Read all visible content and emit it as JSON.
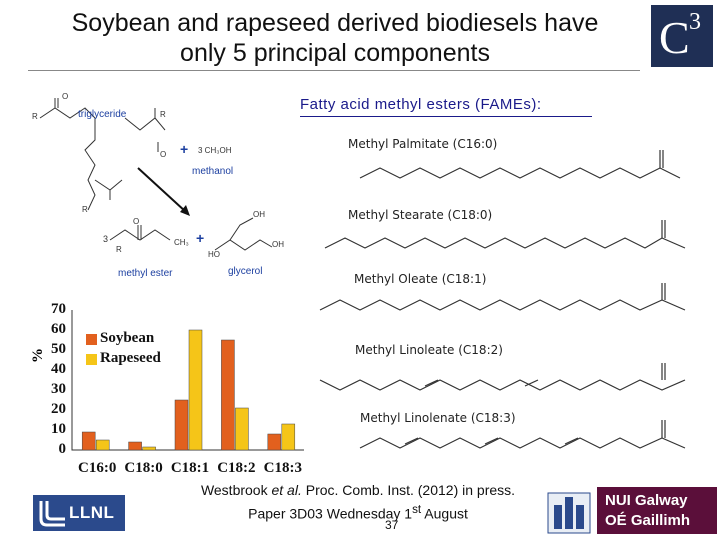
{
  "slide": {
    "title_line1": "Soybean and rapeseed derived biodiesels have",
    "title_line2": "only 5 principal components",
    "logo_letter": "C",
    "logo_sup": "3",
    "fame_title": "Fatty acid methyl esters (FAMEs):",
    "esters": [
      "Methyl Palmitate (C16:0)",
      "Methyl Stearate (C18:0)",
      "Methyl Oleate (C18:1)",
      "Methyl Linoleate (C18:2)",
      "Methyl Linolenate (C18:3)"
    ],
    "reaction": {
      "triglyceride": "triglyceride",
      "methanol": "methanol",
      "methanol_formula": "3 CH₃OH",
      "methyl_ester": "methyl ester",
      "glycerol": "glycerol",
      "coef": "3",
      "ch3": "CH₃",
      "ho": "HO",
      "oh": "OH",
      "r": "R",
      "o": "O"
    },
    "citation_pre": "Westbrook ",
    "citation_em": "et al.",
    "citation_post": " Proc. Comb. Inst. (2012) in press.",
    "paper_line_pre": "Paper 3D03 Wednesday 1",
    "paper_line_sup": "st",
    "paper_line_post": " August",
    "page_number": "37",
    "llnl_label": "LLNL",
    "nui_line1": "NUI Galway",
    "nui_line2": "OÉ Gaillimh"
  },
  "colors": {
    "soybean": "#e2601e",
    "rapeseed": "#f5c518",
    "navy": "#1f2f55",
    "nui": "#5b0f3a",
    "llnl": "#2b4a8c"
  },
  "chart_data": {
    "type": "bar",
    "categories": [
      "C16:0",
      "C18:0",
      "C18:1",
      "C18:2",
      "C18:3"
    ],
    "series": [
      {
        "name": "Soybean",
        "values": [
          9,
          4,
          25,
          55,
          8
        ]
      },
      {
        "name": "Rapeseed",
        "values": [
          5,
          1.5,
          60,
          21,
          13
        ]
      }
    ],
    "ylabel": "%",
    "ylim": [
      0,
      70
    ],
    "yticks": [
      "0",
      "10",
      "20",
      "30",
      "40",
      "50",
      "60",
      "70"
    ],
    "legend_position": "top-left"
  }
}
